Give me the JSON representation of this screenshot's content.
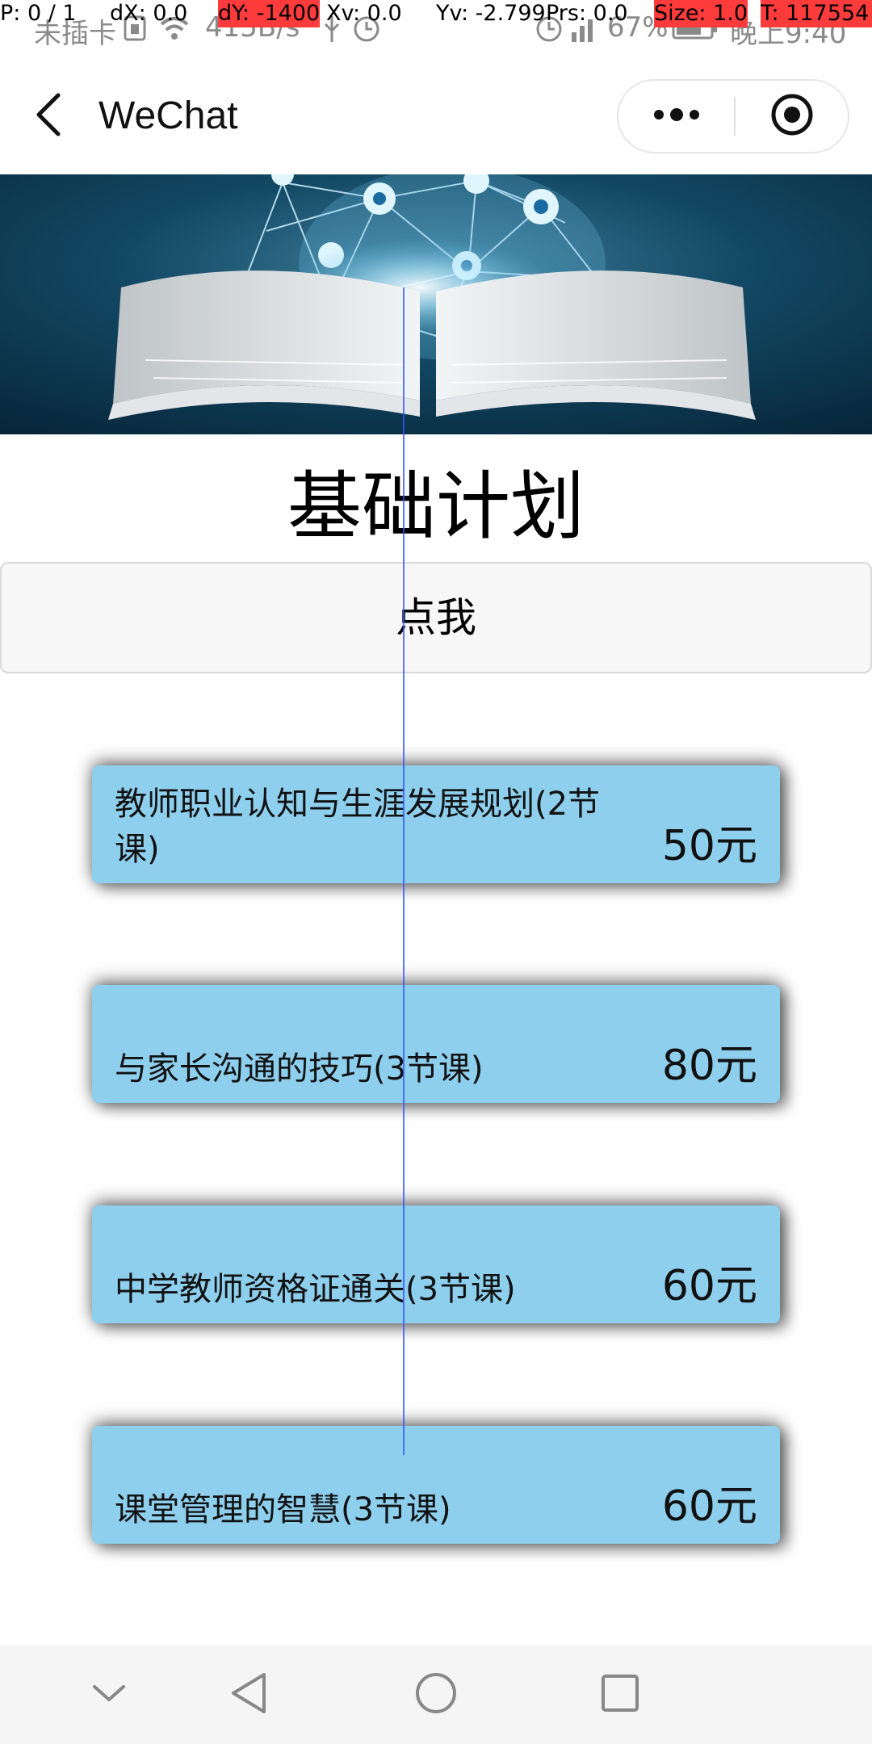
{
  "debug": {
    "pointer": "P: 0 / 1",
    "dx": "dX: 0.0",
    "dy": "dY: -1400",
    "xv": "Xv: 0.0",
    "yv": "Yv: -2.799",
    "prs": "Prs: 0.0",
    "size": "Size: 1.0",
    "time": "T: 117554"
  },
  "status_bar": {
    "carrier": "未插卡",
    "net_speed": "415B/s",
    "battery_pct": "67%",
    "time": "晚上9:40"
  },
  "title_bar": {
    "title": "WeChat"
  },
  "page": {
    "heading": "基础计划",
    "button_label": "点我"
  },
  "courses": [
    {
      "name": "教师职业认知与生涯发展规划(2节课)",
      "price": "50元"
    },
    {
      "name": "与家长沟通的技巧(3节课)",
      "price": "80元"
    },
    {
      "name": "中学教师资格证通关(3节课)",
      "price": "60元"
    },
    {
      "name": "课堂管理的智慧(3节课)",
      "price": "60元"
    }
  ],
  "colors": {
    "card_bg": "#8ecfee",
    "debug_highlight": "#ff3b3b",
    "crosshair": "#3355ff"
  },
  "icons": {
    "back": "chevron-left-icon",
    "more": "more-dots-icon",
    "close": "target-close-icon",
    "nav": [
      "chevron-down-icon",
      "back-triangle-icon",
      "home-circle-icon",
      "recents-square-icon"
    ]
  }
}
